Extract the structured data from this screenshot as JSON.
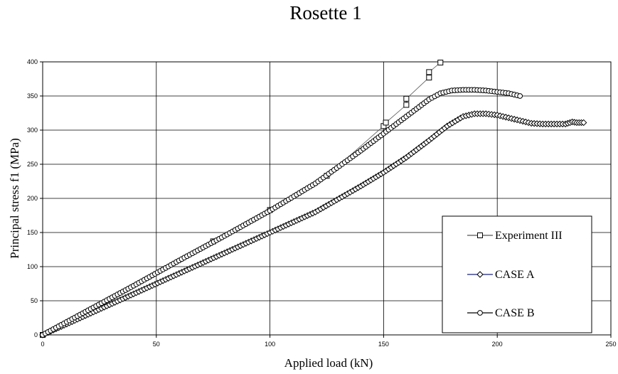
{
  "chart_data": {
    "type": "line",
    "title": "Rosette 1",
    "xlabel": "Applied load (kN)",
    "ylabel": "Principal stress f1 (MPa)",
    "xlim": [
      0,
      250
    ],
    "ylim": [
      0,
      400
    ],
    "x_ticks": [
      0,
      50,
      100,
      150,
      200,
      250
    ],
    "y_ticks": [
      0,
      50,
      100,
      150,
      200,
      250,
      300,
      350,
      400
    ],
    "grid": true,
    "legend_position": "bottom-right",
    "series": [
      {
        "name": "Experiment III",
        "marker": "square",
        "color": "#000000",
        "line_color": "#555555",
        "x": [
          0,
          75,
          100,
          125,
          150,
          151,
          160,
          160,
          170,
          170,
          175
        ],
        "y": [
          0,
          137,
          183,
          233,
          306,
          311,
          337,
          346,
          377,
          385,
          399
        ]
      },
      {
        "name": "CASE A",
        "marker": "diamond",
        "color": "#000000",
        "line_color": "#1a237e",
        "x": [
          0,
          20,
          40,
          60,
          80,
          100,
          120,
          140,
          150,
          160,
          170,
          178,
          185,
          190,
          195,
          200,
          205,
          210,
          215,
          220,
          225,
          230,
          233,
          235,
          238
        ],
        "y": [
          0,
          30,
          60,
          90,
          120,
          150,
          180,
          218,
          238,
          260,
          285,
          306,
          320,
          324,
          324,
          322,
          318,
          314,
          310,
          309,
          309,
          309,
          312,
          311,
          311
        ]
      },
      {
        "name": "CASE B",
        "marker": "circle",
        "color": "#000000",
        "line_color": "#000000",
        "x": [
          0,
          20,
          40,
          60,
          80,
          100,
          120,
          140,
          150,
          160,
          170,
          175,
          180,
          185,
          190,
          195,
          200,
          205,
          210
        ],
        "y": [
          0,
          36,
          72,
          109,
          145,
          182,
          222,
          270,
          295,
          320,
          345,
          354,
          358,
          359,
          359,
          358,
          356,
          354,
          350
        ]
      }
    ]
  }
}
